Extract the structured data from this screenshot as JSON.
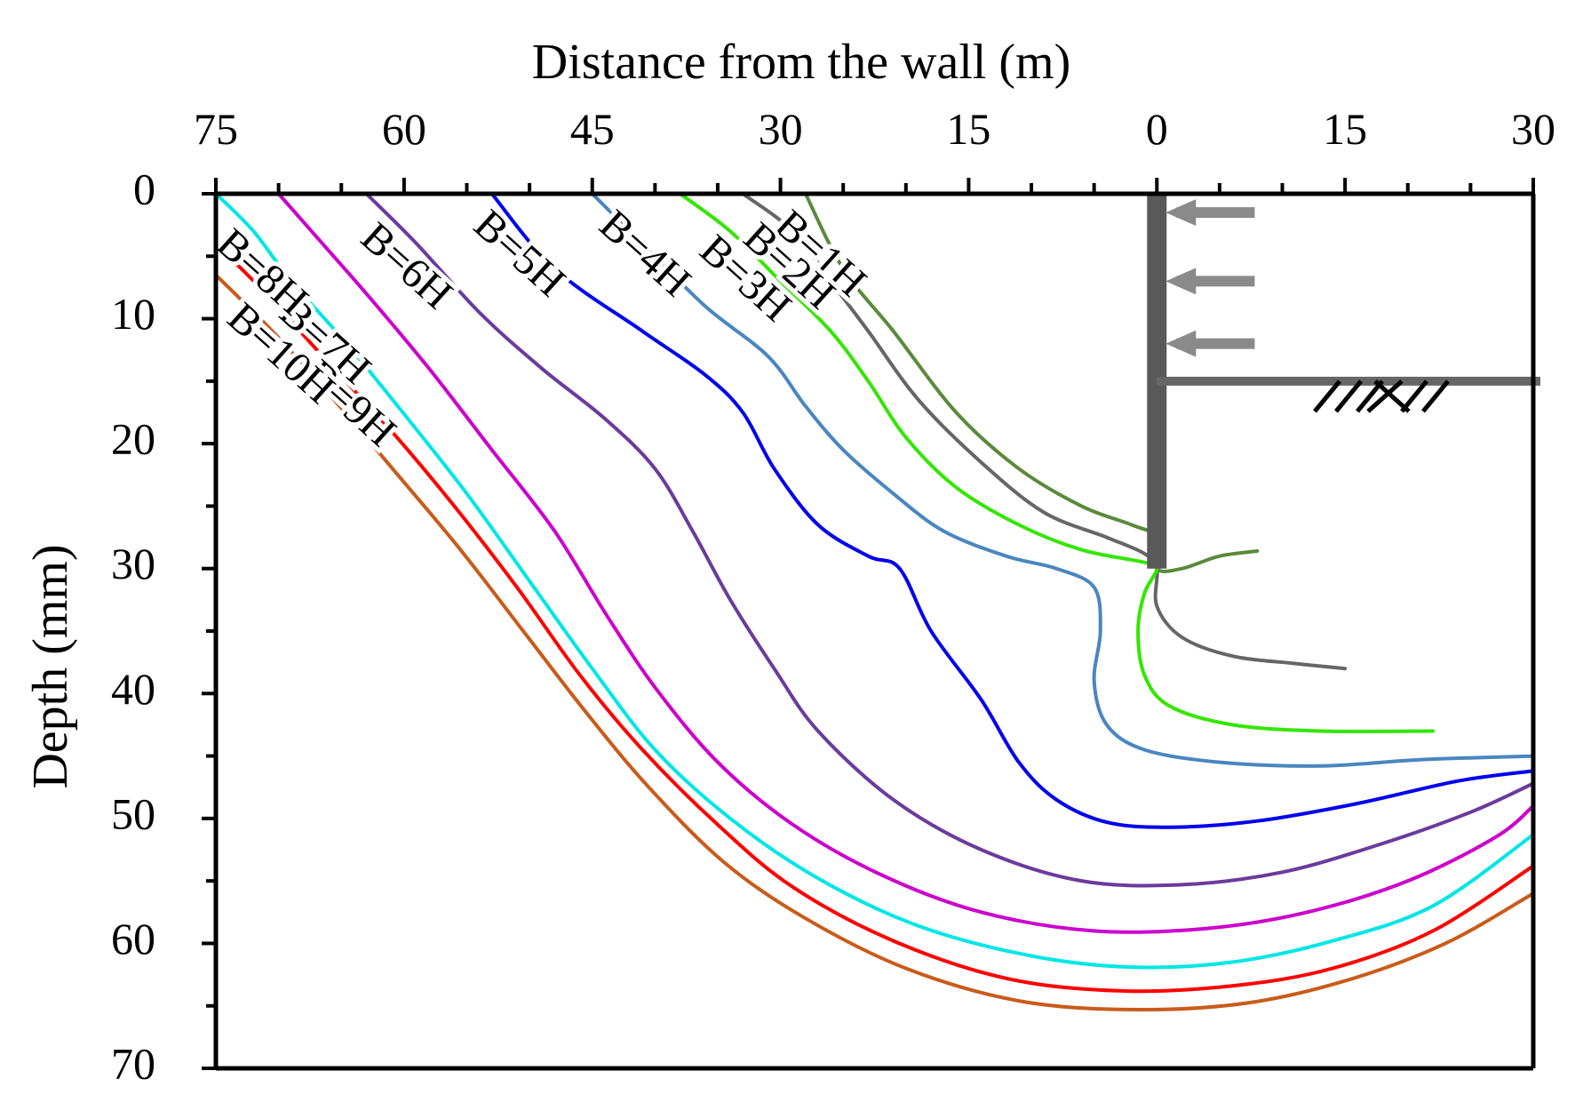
{
  "chart_data": {
    "type": "line",
    "xlabel": "Distance from the wall (m)",
    "ylabel": "Depth (mm)",
    "xlim": [
      -75,
      30
    ],
    "ylim": [
      70,
      0
    ],
    "x_ticks": [
      {
        "value": -75,
        "label": "75"
      },
      {
        "value": -60,
        "label": "60"
      },
      {
        "value": -45,
        "label": "45"
      },
      {
        "value": -30,
        "label": "30"
      },
      {
        "value": -15,
        "label": "15"
      },
      {
        "value": 0,
        "label": "0"
      },
      {
        "value": 15,
        "label": "15"
      },
      {
        "value": 30,
        "label": "30"
      }
    ],
    "y_ticks": [
      0,
      10,
      20,
      30,
      40,
      50,
      60,
      70
    ],
    "grid": false,
    "legend": "none",
    "wall": {
      "x": 0,
      "depth_bottom": 30,
      "strut_depths": [
        1.5,
        7,
        12
      ],
      "base_depth": 15
    },
    "series": [
      {
        "name": "B=1H",
        "color": "#5a8a3c",
        "label_at": [
          -27,
          5
        ],
        "values": [
          [
            -28,
            0
          ],
          [
            -25,
            6
          ],
          [
            -21,
            11
          ],
          [
            -16,
            17.5
          ],
          [
            -11,
            22
          ],
          [
            -6,
            25
          ],
          [
            -2,
            26.5
          ],
          [
            0,
            27.5
          ],
          [
            0,
            30
          ],
          [
            2,
            30
          ],
          [
            5,
            29
          ],
          [
            8,
            28.6
          ]
        ]
      },
      {
        "name": "B=2H",
        "color": "#666666",
        "label_at": [
          -29.5,
          6
        ],
        "values": [
          [
            -33,
            0
          ],
          [
            -29,
            3
          ],
          [
            -26,
            7
          ],
          [
            -23,
            11
          ],
          [
            -19,
            16.5
          ],
          [
            -14,
            21.5
          ],
          [
            -9,
            25.5
          ],
          [
            -4,
            27.5
          ],
          [
            -1,
            28.8
          ],
          [
            0,
            30
          ],
          [
            0,
            33
          ],
          [
            2,
            35.5
          ],
          [
            6,
            37
          ],
          [
            11,
            37.6
          ],
          [
            15,
            38
          ]
        ]
      },
      {
        "name": "B=3H",
        "color": "#33e600",
        "label_at": [
          -33,
          7
        ],
        "values": [
          [
            -38,
            0
          ],
          [
            -34,
            3
          ],
          [
            -30,
            7
          ],
          [
            -26,
            11
          ],
          [
            -23,
            15
          ],
          [
            -20,
            19.5
          ],
          [
            -16,
            23.5
          ],
          [
            -11,
            26.5
          ],
          [
            -6,
            28.5
          ],
          [
            -1,
            29.5
          ],
          [
            0,
            30
          ],
          [
            -1,
            32
          ],
          [
            -1.5,
            35
          ],
          [
            -1,
            38.5
          ],
          [
            1,
            41
          ],
          [
            6,
            42.5
          ],
          [
            13,
            43
          ],
          [
            22,
            43
          ]
        ]
      },
      {
        "name": "B=4H",
        "color": "#4a86c0",
        "label_at": [
          -41,
          5
        ],
        "values": [
          [
            -45,
            0
          ],
          [
            -41,
            4
          ],
          [
            -36,
            9
          ],
          [
            -31,
            13
          ],
          [
            -28,
            17
          ],
          [
            -25,
            20.5
          ],
          [
            -21,
            24
          ],
          [
            -17,
            27
          ],
          [
            -12,
            29
          ],
          [
            -8,
            30
          ],
          [
            -5,
            31.5
          ],
          [
            -4.5,
            35
          ],
          [
            -5,
            39
          ],
          [
            -4,
            42.5
          ],
          [
            -1,
            44.5
          ],
          [
            5,
            45.5
          ],
          [
            13,
            45.8
          ],
          [
            21,
            45.3
          ],
          [
            30,
            45
          ]
        ]
      },
      {
        "name": "B=5H",
        "color": "#0000ee",
        "label_at": [
          -51,
          5
        ],
        "values": [
          [
            -53,
            0
          ],
          [
            -48,
            6
          ],
          [
            -41,
            11
          ],
          [
            -36,
            14.5
          ],
          [
            -33,
            17.5
          ],
          [
            -30.5,
            22
          ],
          [
            -27,
            26.5
          ],
          [
            -23,
            29
          ],
          [
            -20.5,
            30
          ],
          [
            -18,
            35
          ],
          [
            -14,
            40.5
          ],
          [
            -11,
            45.5
          ],
          [
            -8,
            48.5
          ],
          [
            -4,
            50.3
          ],
          [
            1,
            50.7
          ],
          [
            8,
            50.2
          ],
          [
            16,
            48.8
          ],
          [
            24,
            47
          ],
          [
            30,
            46.2
          ]
        ]
      },
      {
        "name": "B=6H",
        "color": "#6a3b9c",
        "label_at": [
          -60,
          6
        ],
        "values": [
          [
            -63,
            0
          ],
          [
            -59,
            4
          ],
          [
            -54,
            9.5
          ],
          [
            -49,
            14
          ],
          [
            -44,
            18
          ],
          [
            -40,
            22
          ],
          [
            -37,
            27
          ],
          [
            -34,
            32.5
          ],
          [
            -30.5,
            38
          ],
          [
            -27,
            43
          ],
          [
            -21,
            48.5
          ],
          [
            -14,
            52.5
          ],
          [
            -6,
            55
          ],
          [
            2,
            55.3
          ],
          [
            10,
            54.3
          ],
          [
            18,
            52
          ],
          [
            25,
            49.5
          ],
          [
            30,
            47.2
          ]
        ]
      },
      {
        "name": "B=7H",
        "color": "#cc00cc",
        "label_at": [
          -66.5,
          12
        ],
        "values": [
          [
            -70,
            0
          ],
          [
            -66.5,
            4
          ],
          [
            -63,
            8
          ],
          [
            -58,
            14
          ],
          [
            -53,
            20.5
          ],
          [
            -48,
            27
          ],
          [
            -44,
            33.5
          ],
          [
            -40,
            39.5
          ],
          [
            -35,
            45.5
          ],
          [
            -29,
            50.5
          ],
          [
            -22,
            54.5
          ],
          [
            -14,
            57.5
          ],
          [
            -5,
            59
          ],
          [
            4,
            58.8
          ],
          [
            12,
            57.5
          ],
          [
            20,
            55
          ],
          [
            27,
            51.5
          ],
          [
            30,
            49
          ]
        ]
      },
      {
        "name": "B=8H",
        "color": "#00e6e6",
        "label_at": [
          -71.5,
          6.5
        ],
        "values": [
          [
            -75,
            0
          ],
          [
            -72,
            3
          ],
          [
            -69,
            7
          ],
          [
            -65,
            11.5
          ],
          [
            -60.5,
            17
          ],
          [
            -55,
            24
          ],
          [
            -50,
            31
          ],
          [
            -45,
            38
          ],
          [
            -40,
            44.5
          ],
          [
            -34,
            50
          ],
          [
            -27,
            54.8
          ],
          [
            -19,
            58.6
          ],
          [
            -10,
            61
          ],
          [
            -2,
            61.9
          ],
          [
            6,
            61.5
          ],
          [
            14,
            59.8
          ],
          [
            22,
            57
          ],
          [
            30,
            51.3
          ]
        ]
      },
      {
        "name": "B=9H",
        "color": "#ff0000",
        "label_at": [
          -64.5,
          17
        ],
        "values": [
          [
            -75,
            4
          ],
          [
            -71,
            8
          ],
          [
            -66.5,
            13
          ],
          [
            -61,
            19
          ],
          [
            -56,
            25
          ],
          [
            -51,
            31.5
          ],
          [
            -46,
            38.5
          ],
          [
            -41,
            44.5
          ],
          [
            -35,
            50.5
          ],
          [
            -29,
            55.5
          ],
          [
            -21,
            59.8
          ],
          [
            -12,
            62.8
          ],
          [
            -3,
            63.8
          ],
          [
            6,
            63.4
          ],
          [
            14,
            62
          ],
          [
            22,
            59
          ],
          [
            30,
            53.8
          ]
        ]
      },
      {
        "name": "B=10H",
        "color": "#c95b1a",
        "label_at": [
          -70,
          13
        ],
        "values": [
          [
            -75,
            6.5
          ],
          [
            -70.5,
            11
          ],
          [
            -66,
            16
          ],
          [
            -60.5,
            22.5
          ],
          [
            -55.5,
            28.5
          ],
          [
            -50.5,
            35
          ],
          [
            -45.5,
            41.5
          ],
          [
            -40.5,
            47.5
          ],
          [
            -34.5,
            53.5
          ],
          [
            -28,
            58
          ],
          [
            -20,
            62
          ],
          [
            -11,
            64.6
          ],
          [
            -2,
            65.3
          ],
          [
            7,
            64.8
          ],
          [
            15,
            63
          ],
          [
            23,
            60
          ],
          [
            30,
            56
          ]
        ]
      }
    ]
  }
}
